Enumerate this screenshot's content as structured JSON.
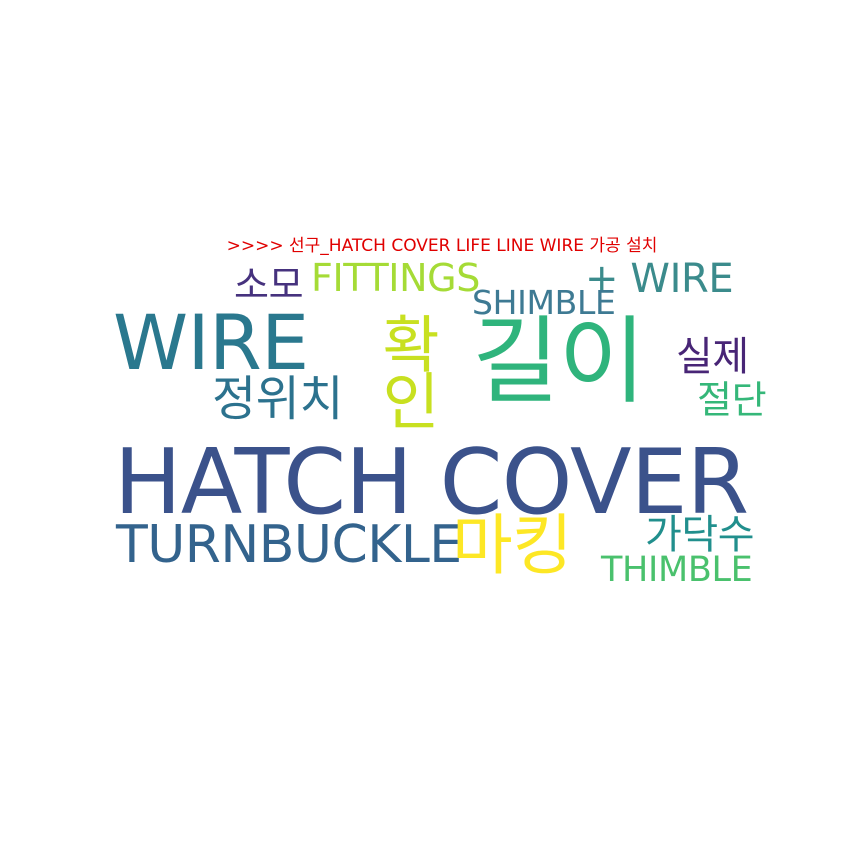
{
  "title": ">>>> 선구_HATCH COVER LIFE LINE WIRE 가공 설치",
  "words": [
    {
      "text": "HATCH COVER",
      "color": "#3b528b"
    },
    {
      "text": "길이",
      "color": "#2fb47c"
    },
    {
      "text": "WIRE",
      "color": "#2a788e"
    },
    {
      "text": "확인",
      "color": "#c8e020"
    },
    {
      "text": "TURNBUCKLE",
      "color": "#33638d"
    },
    {
      "text": "마킹",
      "color": "#fde725"
    },
    {
      "text": "정위치",
      "color": "#2c728e"
    },
    {
      "text": "FITTINGS",
      "color": "#a5db36"
    },
    {
      "text": "+ WIRE",
      "color": "#3b8b8c"
    },
    {
      "text": "SHIMBLE",
      "color": "#3e7a93"
    },
    {
      "text": "소모",
      "color": "#46327e"
    },
    {
      "text": "실제",
      "color": "#482576"
    },
    {
      "text": "절단",
      "color": "#35b779"
    },
    {
      "text": "가닥수",
      "color": "#218f8d"
    },
    {
      "text": "THIMBLE",
      "color": "#4ac16d"
    }
  ]
}
